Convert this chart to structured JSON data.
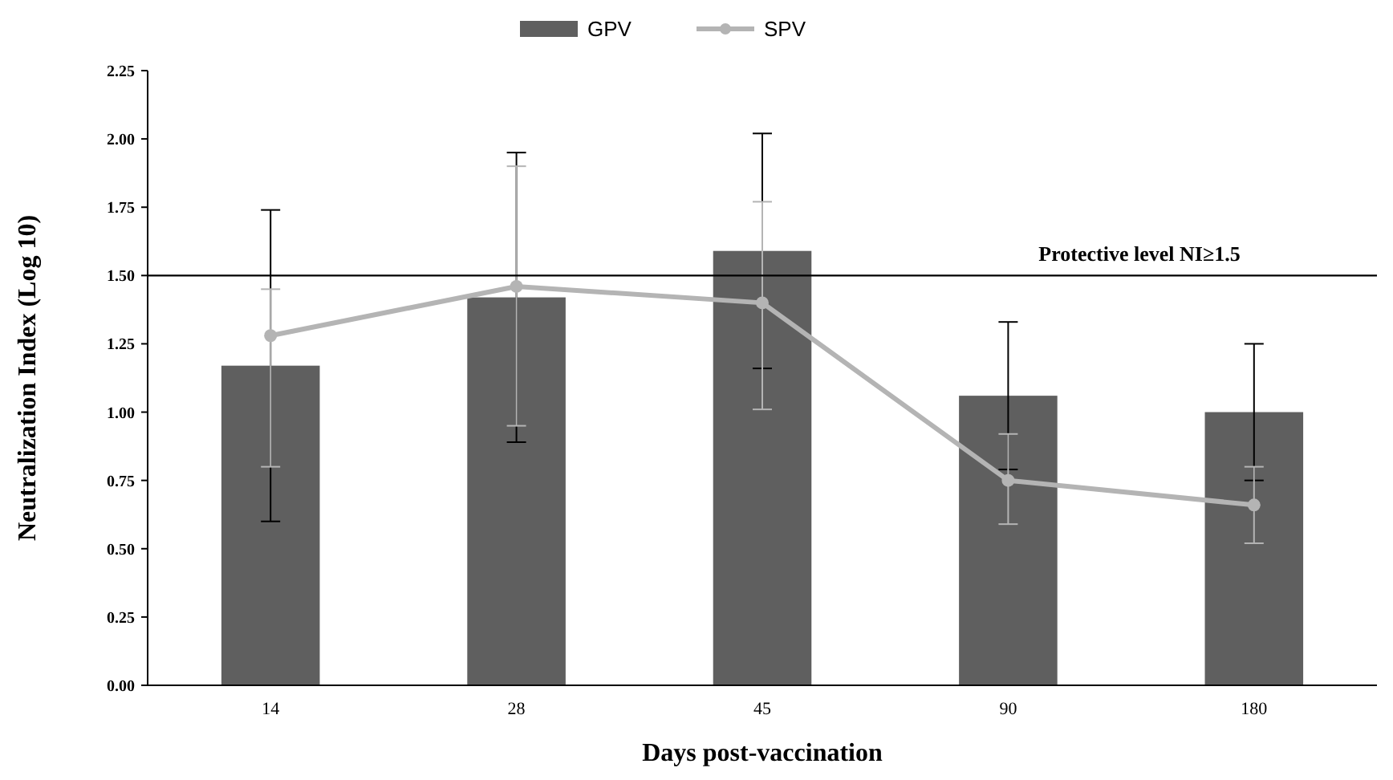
{
  "chart_data": {
    "type": "bar",
    "xlabel": "Days post-vaccination",
    "ylabel": "Neutralization Index (Log 10)",
    "categories": [
      "14",
      "28",
      "45",
      "90",
      "180"
    ],
    "series": [
      {
        "name": "GPV",
        "color": "#5f5f5f",
        "values": [
          1.17,
          1.42,
          1.59,
          1.06,
          1.0
        ],
        "errors": [
          0.57,
          0.53,
          0.43,
          0.27,
          0.25
        ]
      },
      {
        "name": "SPV",
        "type": "line",
        "color": "#b4b4b4",
        "values": [
          1.28,
          1.46,
          1.4,
          0.75,
          0.66
        ],
        "errors": [
          [
            0.8,
            1.45
          ],
          [
            0.95,
            1.9
          ],
          [
            1.01,
            1.77
          ],
          [
            0.59,
            0.92
          ],
          [
            0.52,
            0.8
          ]
        ],
        "marker": "circle"
      }
    ],
    "ylim": [
      0,
      2.25
    ],
    "yticks": [
      {
        "value": 0,
        "label": "0.00"
      },
      {
        "value": 0.25,
        "label": "0.25"
      },
      {
        "value": 0.5,
        "label": "0.50"
      },
      {
        "value": 0.75,
        "label": "0.75"
      },
      {
        "value": 1,
        "label": "1.00"
      },
      {
        "value": 1.25,
        "label": "1.25"
      },
      {
        "value": 1.5,
        "label": "1.50"
      },
      {
        "value": 1.75,
        "label": "1.75"
      },
      {
        "value": 2,
        "label": "2.00"
      },
      {
        "value": 2.25,
        "label": "2.25"
      }
    ],
    "ref_lines": [
      {
        "axis": "y",
        "value": 1.5,
        "label": "Protective level NI≥1.5",
        "color": "#000000"
      }
    ],
    "grid": false,
    "legend": "top"
  }
}
